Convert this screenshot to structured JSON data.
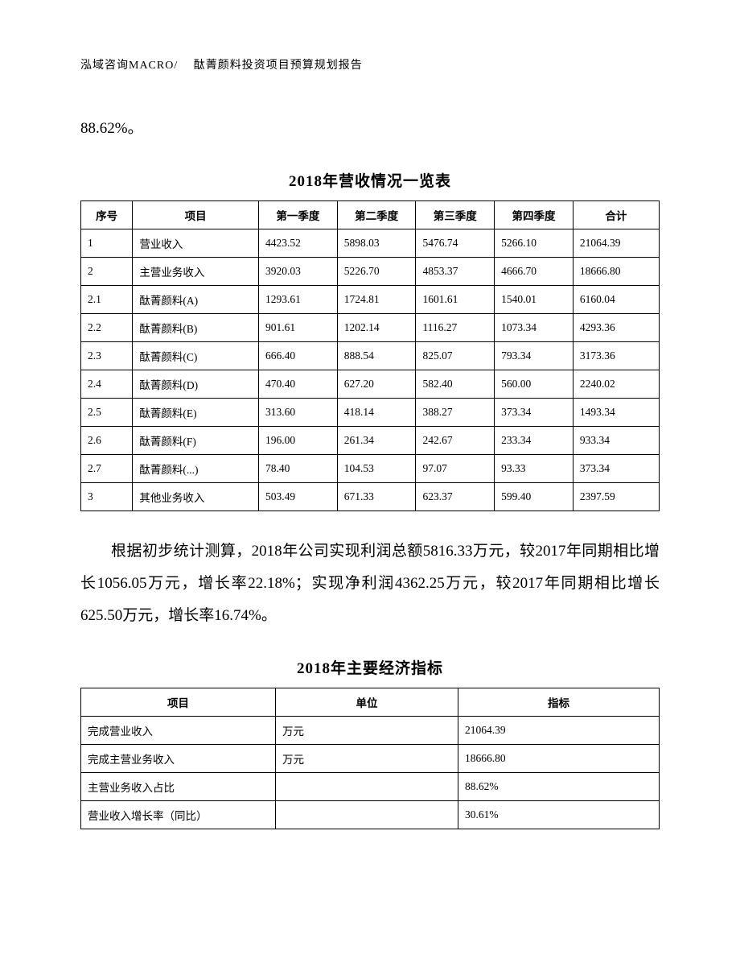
{
  "header": "泓域咨询MACRO/　 酞菁颜料投资项目预算规划报告",
  "frag1": "88.62%。",
  "table1_title": "2018年营收情况一览表",
  "t1_headers": {
    "seq": "序号",
    "item": "项目",
    "q1": "第一季度",
    "q2": "第二季度",
    "q3": "第三季度",
    "q4": "第四季度",
    "total": "合计"
  },
  "t1_rows": [
    {
      "seq": "1",
      "item": "营业收入",
      "q1": "4423.52",
      "q2": "5898.03",
      "q3": "5476.74",
      "q4": "5266.10",
      "total": "21064.39"
    },
    {
      "seq": "2",
      "item": "主营业务收入",
      "q1": "3920.03",
      "q2": "5226.70",
      "q3": "4853.37",
      "q4": "4666.70",
      "total": "18666.80"
    },
    {
      "seq": "2.1",
      "item": "酞菁颜料(A)",
      "q1": "1293.61",
      "q2": "1724.81",
      "q3": "1601.61",
      "q4": "1540.01",
      "total": "6160.04"
    },
    {
      "seq": "2.2",
      "item": "酞菁颜料(B)",
      "q1": "901.61",
      "q2": "1202.14",
      "q3": "1116.27",
      "q4": "1073.34",
      "total": "4293.36"
    },
    {
      "seq": "2.3",
      "item": "酞菁颜料(C)",
      "q1": "666.40",
      "q2": "888.54",
      "q3": "825.07",
      "q4": "793.34",
      "total": "3173.36"
    },
    {
      "seq": "2.4",
      "item": "酞菁颜料(D)",
      "q1": "470.40",
      "q2": "627.20",
      "q3": "582.40",
      "q4": "560.00",
      "total": "2240.02"
    },
    {
      "seq": "2.5",
      "item": "酞菁颜料(E)",
      "q1": "313.60",
      "q2": "418.14",
      "q3": "388.27",
      "q4": "373.34",
      "total": "1493.34"
    },
    {
      "seq": "2.6",
      "item": "酞菁颜料(F)",
      "q1": "196.00",
      "q2": "261.34",
      "q3": "242.67",
      "q4": "233.34",
      "total": "933.34"
    },
    {
      "seq": "2.7",
      "item": "酞菁颜料(...)",
      "q1": "78.40",
      "q2": "104.53",
      "q3": "97.07",
      "q4": "93.33",
      "total": "373.34"
    },
    {
      "seq": "3",
      "item": "其他业务收入",
      "q1": "503.49",
      "q2": "671.33",
      "q3": "623.37",
      "q4": "599.40",
      "total": "2397.59"
    }
  ],
  "para2": "根据初步统计测算，2018年公司实现利润总额5816.33万元，较2017年同期相比增长1056.05万元，增长率22.18%；实现净利润4362.25万元，较2017年同期相比增长625.50万元，增长率16.74%。",
  "table2_title": "2018年主要经济指标",
  "t2_headers": {
    "item": "项目",
    "unit": "单位",
    "value": "指标"
  },
  "t2_rows": [
    {
      "item": "完成营业收入",
      "unit": "万元",
      "value": "21064.39"
    },
    {
      "item": "完成主营业务收入",
      "unit": "万元",
      "value": "18666.80"
    },
    {
      "item": "主营业务收入占比",
      "unit": "",
      "value": "88.62%"
    },
    {
      "item": "营业收入增长率（同比）",
      "unit": "",
      "value": "30.61%"
    }
  ]
}
